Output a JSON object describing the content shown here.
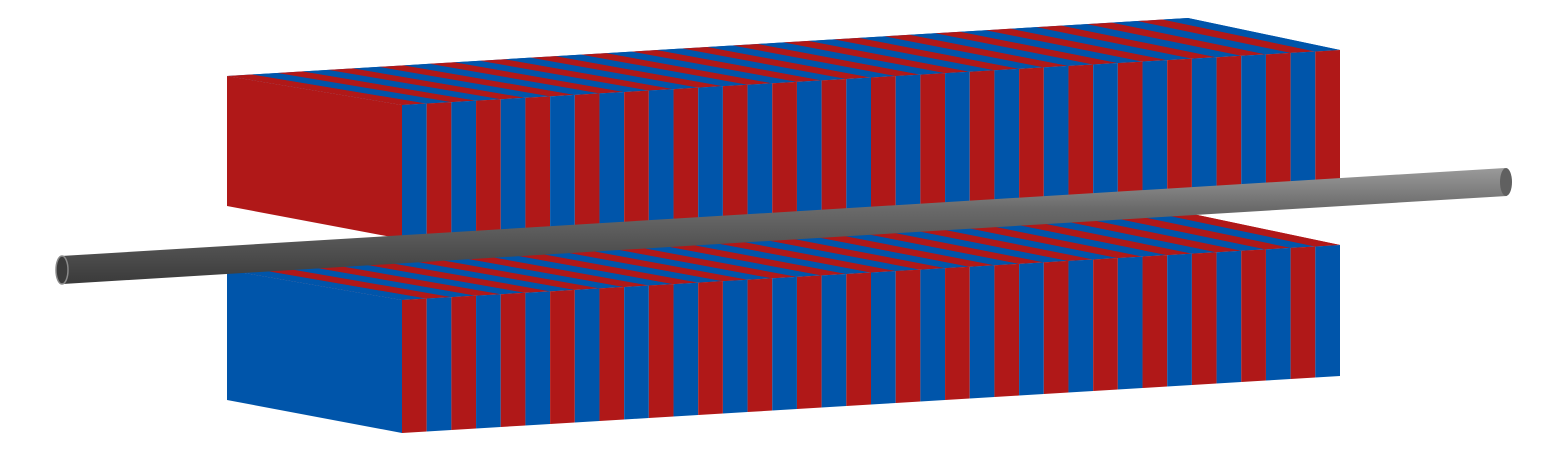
{
  "diagram": {
    "description_type": "undulator-schematic",
    "upper_magnet_array": {
      "end_face_color": "#b01818",
      "first_block_color": "#b01818",
      "stripe_colors": [
        "#0055aa",
        "#b01818"
      ],
      "stripe_count": 38
    },
    "lower_magnet_array": {
      "end_face_color": "#0055aa",
      "first_block_color": "#0055aa",
      "stripe_colors": [
        "#b01818",
        "#0055aa"
      ],
      "stripe_count": 38
    },
    "beam_pipe": {
      "color": "#606060",
      "highlight_color": "#8a8a8a",
      "shadow_color": "#3c3c3c"
    },
    "colors": {
      "red": "#b01818",
      "blue": "#0055aa",
      "background": "#ffffff"
    }
  }
}
